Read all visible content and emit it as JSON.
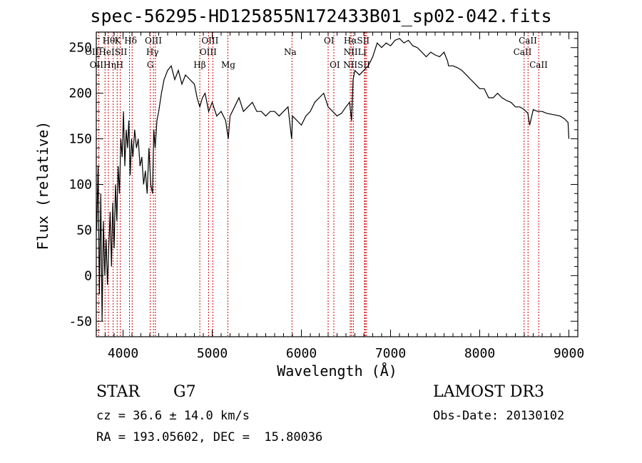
{
  "chart_data": {
    "type": "line",
    "title": "spec-56295-HD125855N172433B01_sp02-042.fits",
    "xlabel": "Wavelength (Å)",
    "ylabel": "Flux (relative)",
    "xlim": [
      3700,
      9100
    ],
    "ylim": [
      -67,
      267
    ],
    "xticks": [
      "4000",
      "5000",
      "6000",
      "7000",
      "8000",
      "9000"
    ],
    "yticks": [
      "-50",
      "0",
      "50",
      "100",
      "150",
      "200",
      "250"
    ],
    "grid": false,
    "legend": "none",
    "series": [
      {
        "x": [
          3705,
          3720,
          3735,
          3750,
          3765,
          3780,
          3795,
          3810,
          3825,
          3840,
          3855,
          3870,
          3885,
          3900,
          3915,
          3930,
          3945,
          3960,
          3975,
          3990,
          4005,
          4020,
          4035,
          4050,
          4065,
          4080,
          4095,
          4110,
          4130,
          4150,
          4170,
          4190,
          4210,
          4230,
          4250,
          4270,
          4290,
          4310,
          4330,
          4345,
          4360,
          4380,
          4400,
          4430,
          4460,
          4500,
          4540,
          4580,
          4620,
          4660,
          4700,
          4750,
          4800,
          4830,
          4861,
          4890,
          4920,
          4960,
          5000,
          5050,
          5100,
          5150,
          5180,
          5200,
          5250,
          5300,
          5350,
          5400,
          5450,
          5500,
          5550,
          5600,
          5650,
          5700,
          5750,
          5800,
          5850,
          5890,
          5895,
          5900,
          5950,
          6000,
          6050,
          6100,
          6150,
          6200,
          6250,
          6300,
          6350,
          6400,
          6450,
          6500,
          6540,
          6563,
          6580,
          6600,
          6650,
          6700,
          6750,
          6800,
          6850,
          6900,
          6950,
          7000,
          7050,
          7100,
          7150,
          7200,
          7250,
          7300,
          7350,
          7400,
          7450,
          7500,
          7550,
          7600,
          7640,
          7650,
          7700,
          7750,
          7800,
          7850,
          7900,
          7950,
          8000,
          8050,
          8100,
          8150,
          8200,
          8250,
          8300,
          8350,
          8400,
          8450,
          8500,
          8540,
          8560,
          8600,
          8650,
          8700,
          8750,
          8800,
          8850,
          8900,
          8950,
          8990,
          9000
        ],
        "y": [
          50,
          120,
          -20,
          90,
          -50,
          60,
          0,
          40,
          -10,
          30,
          70,
          10,
          80,
          30,
          100,
          60,
          120,
          90,
          150,
          130,
          180,
          120,
          160,
          140,
          170,
          110,
          150,
          130,
          160,
          140,
          150,
          120,
          130,
          100,
          115,
          90,
          140,
          100,
          90,
          160,
          140,
          170,
          180,
          200,
          215,
          225,
          230,
          215,
          225,
          210,
          220,
          215,
          210,
          195,
          185,
          195,
          200,
          180,
          190,
          175,
          180,
          170,
          150,
          175,
          185,
          195,
          180,
          185,
          190,
          180,
          180,
          175,
          180,
          180,
          175,
          180,
          185,
          150,
          160,
          175,
          170,
          165,
          175,
          180,
          190,
          195,
          200,
          185,
          180,
          175,
          178,
          185,
          190,
          170,
          215,
          225,
          220,
          225,
          230,
          240,
          255,
          250,
          255,
          252,
          258,
          260,
          255,
          258,
          252,
          250,
          245,
          240,
          245,
          242,
          240,
          245,
          235,
          230,
          230,
          228,
          225,
          220,
          215,
          210,
          205,
          205,
          195,
          195,
          200,
          195,
          192,
          190,
          185,
          185,
          182,
          178,
          165,
          182,
          180,
          180,
          178,
          177,
          176,
          175,
          172,
          168,
          150
        ]
      }
    ],
    "lines": [
      {
        "name": "Hθ",
        "x": 3798
      },
      {
        "name": "OII",
        "x": 3727
      },
      {
        "name": "Hη",
        "x": 3835
      },
      {
        "name": "K",
        "x": 3934
      },
      {
        "name": "H",
        "x": 3969
      },
      {
        "name": "HeI",
        "x": 3889
      },
      {
        "name": "Hδ",
        "x": 4102
      },
      {
        "name": "SII",
        "x": 4072
      },
      {
        "name": "Hγ",
        "x": 4341
      },
      {
        "name": "G",
        "x": 4305
      },
      {
        "name": "OIII",
        "x": 4363
      },
      {
        "name": "Hβ",
        "x": 4861
      },
      {
        "name": "OIII",
        "x": 4959
      },
      {
        "name": "OIII",
        "x": 5007
      },
      {
        "name": "Mg",
        "x": 5175
      },
      {
        "name": "Na",
        "x": 5894
      },
      {
        "name": "OI",
        "x": 6300
      },
      {
        "name": "OI",
        "x": 6364
      },
      {
        "name": "NII",
        "x": 6548
      },
      {
        "name": "Hα",
        "x": 6563
      },
      {
        "name": "NII",
        "x": 6583
      },
      {
        "name": "Li",
        "x": 6708
      },
      {
        "name": "SII",
        "x": 6716
      },
      {
        "name": "SII",
        "x": 6731
      },
      {
        "name": "CaII",
        "x": 8498
      },
      {
        "name": "CaII",
        "x": 8542
      },
      {
        "name": "CaII",
        "x": 8662
      }
    ]
  },
  "labels": {
    "r1": [
      "Hθ",
      "K",
      "Hδ",
      "OIII",
      "OIII",
      "OI",
      "HαSII",
      "CaII"
    ],
    "r2": [
      "OIIHeISII",
      "Hγ",
      "OIII",
      "Na",
      "NIILi",
      "CaII"
    ],
    "r3": [
      "OIIHηH",
      "G",
      "Hβ",
      "Mg",
      "OI",
      "NIISII",
      "CaII"
    ]
  },
  "info": {
    "class": "STAR",
    "subclass": "G7",
    "survey": "LAMOST DR3",
    "cz": "cz = 36.6 ± 14.0 km/s",
    "obsdate": "Obs-Date: 20130102",
    "radec": "RA = 193.05602, DEC =  15.80036"
  }
}
